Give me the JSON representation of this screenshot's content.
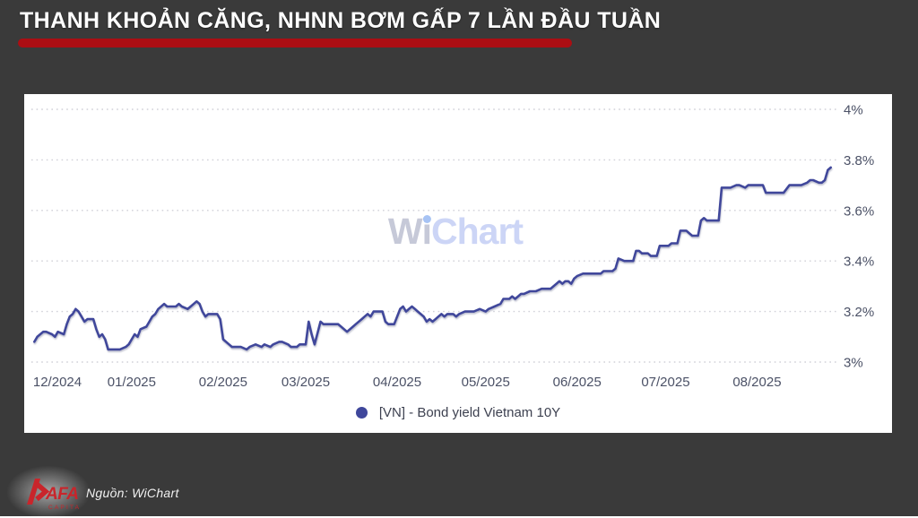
{
  "page": {
    "background": "#3a3a3a",
    "panel_background": "#ffffff"
  },
  "header": {
    "title": "THANH KHOẢN CĂNG, NHNN BƠM GẤP 7 LẦN ĐẦU TUẦN",
    "underline_color": "#ab0e13"
  },
  "watermark": {
    "part_w": "W",
    "part_i": "i",
    "part_rest": "Chart"
  },
  "footer": {
    "source_label": "Nguồn: WiChart",
    "logo_text": "AFA",
    "logo_subtext": "CAPITAL",
    "logo_color": "#c9252b"
  },
  "chart_data": {
    "type": "line",
    "title": "",
    "xlabel": "",
    "ylabel": "",
    "grid": "horizontal-dotted",
    "gridline_color": "#d0d0d8",
    "axis_label_color": "#4b5166",
    "legend_position": "bottom",
    "ylim": [
      3.0,
      4.0
    ],
    "x_domain": [
      "2024-11-28",
      "2025-08-27"
    ],
    "y_ticks": [
      {
        "label": "3%",
        "value": 3.0
      },
      {
        "label": "3.2%",
        "value": 3.2
      },
      {
        "label": "3.4%",
        "value": 3.4
      },
      {
        "label": "3.6%",
        "value": 3.6
      },
      {
        "label": "3.8%",
        "value": 3.8
      },
      {
        "label": "4%",
        "value": 4.0
      }
    ],
    "x_ticks": [
      {
        "label": "12/2024",
        "date": "2024-12-01"
      },
      {
        "label": "01/2025",
        "date": "2025-01-01"
      },
      {
        "label": "02/2025",
        "date": "2025-02-01"
      },
      {
        "label": "03/2025",
        "date": "2025-03-01"
      },
      {
        "label": "04/2025",
        "date": "2025-04-01"
      },
      {
        "label": "05/2025",
        "date": "2025-05-01"
      },
      {
        "label": "06/2025",
        "date": "2025-06-01"
      },
      {
        "label": "07/2025",
        "date": "2025-07-01"
      },
      {
        "label": "08/2025",
        "date": "2025-08-01"
      }
    ],
    "series": [
      {
        "name": "[VN] - Bond yield Vietnam 10Y",
        "color": "#3f479b",
        "dates": [
          "2024-11-29",
          "2024-11-30",
          "2024-12-02",
          "2024-12-03",
          "2024-12-05",
          "2024-12-06",
          "2024-12-07",
          "2024-12-09",
          "2024-12-10",
          "2024-12-11",
          "2024-12-12",
          "2024-12-13",
          "2024-12-14",
          "2024-12-15",
          "2024-12-16",
          "2024-12-17",
          "2024-12-19",
          "2024-12-20",
          "2024-12-21",
          "2024-12-22",
          "2024-12-23",
          "2024-12-24",
          "2024-12-26",
          "2024-12-27",
          "2024-12-28",
          "2024-12-30",
          "2024-12-31",
          "2025-01-01",
          "2025-01-02",
          "2025-01-03",
          "2025-01-04",
          "2025-01-06",
          "2025-01-07",
          "2025-01-08",
          "2025-01-09",
          "2025-01-10",
          "2025-01-12",
          "2025-01-13",
          "2025-01-14",
          "2025-01-16",
          "2025-01-17",
          "2025-01-18",
          "2025-01-20",
          "2025-01-21",
          "2025-01-23",
          "2025-01-24",
          "2025-01-25",
          "2025-01-26",
          "2025-01-27",
          "2025-01-29",
          "2025-01-30",
          "2025-01-31",
          "2025-02-01",
          "2025-02-03",
          "2025-02-04",
          "2025-02-06",
          "2025-02-07",
          "2025-02-09",
          "2025-02-10",
          "2025-02-12",
          "2025-02-14",
          "2025-02-15",
          "2025-02-17",
          "2025-02-18",
          "2025-02-20",
          "2025-02-21",
          "2025-02-23",
          "2025-02-24",
          "2025-02-26",
          "2025-02-27",
          "2025-03-01",
          "2025-03-02",
          "2025-03-03",
          "2025-03-04",
          "2025-03-06",
          "2025-03-07",
          "2025-03-09",
          "2025-03-10",
          "2025-03-12",
          "2025-03-13",
          "2025-03-15",
          "2025-03-17",
          "2025-03-18",
          "2025-03-20",
          "2025-03-21",
          "2025-03-22",
          "2025-03-23",
          "2025-03-24",
          "2025-03-26",
          "2025-03-27",
          "2025-03-28",
          "2025-03-29",
          "2025-03-30",
          "2025-03-31",
          "2025-04-02",
          "2025-04-03",
          "2025-04-04",
          "2025-04-05",
          "2025-04-06",
          "2025-04-07",
          "2025-04-08",
          "2025-04-09",
          "2025-04-10",
          "2025-04-11",
          "2025-04-12",
          "2025-04-13",
          "2025-04-14",
          "2025-04-15",
          "2025-04-16",
          "2025-04-17",
          "2025-04-18",
          "2025-04-20",
          "2025-04-21",
          "2025-04-22",
          "2025-04-24",
          "2025-04-26",
          "2025-04-27",
          "2025-04-29",
          "2025-05-01",
          "2025-05-02",
          "2025-05-04",
          "2025-05-06",
          "2025-05-07",
          "2025-05-09",
          "2025-05-10",
          "2025-05-11",
          "2025-05-12",
          "2025-05-13",
          "2025-05-14",
          "2025-05-16",
          "2025-05-17",
          "2025-05-18",
          "2025-05-20",
          "2025-05-21",
          "2025-05-22",
          "2025-05-23",
          "2025-05-25",
          "2025-05-26",
          "2025-05-27",
          "2025-05-28",
          "2025-05-29",
          "2025-05-30",
          "2025-05-31",
          "2025-06-01",
          "2025-06-03",
          "2025-06-04",
          "2025-06-06",
          "2025-06-07",
          "2025-06-09",
          "2025-06-10",
          "2025-06-11",
          "2025-06-13",
          "2025-06-14",
          "2025-06-15",
          "2025-06-17",
          "2025-06-18",
          "2025-06-20",
          "2025-06-21",
          "2025-06-22",
          "2025-06-23",
          "2025-06-25",
          "2025-06-26",
          "2025-06-28",
          "2025-06-29",
          "2025-06-30",
          "2025-07-02",
          "2025-07-03",
          "2025-07-05",
          "2025-07-06",
          "2025-07-08",
          "2025-07-09",
          "2025-07-10",
          "2025-07-12",
          "2025-07-13",
          "2025-07-14",
          "2025-07-15",
          "2025-07-17",
          "2025-07-19",
          "2025-07-20",
          "2025-07-22",
          "2025-07-23",
          "2025-07-25",
          "2025-07-26",
          "2025-07-28",
          "2025-07-29",
          "2025-07-31",
          "2025-08-01",
          "2025-08-03",
          "2025-08-04",
          "2025-08-06",
          "2025-08-07",
          "2025-08-09",
          "2025-08-10",
          "2025-08-12",
          "2025-08-13",
          "2025-08-15",
          "2025-08-16",
          "2025-08-18",
          "2025-08-19",
          "2025-08-20",
          "2025-08-22",
          "2025-08-23",
          "2025-08-24",
          "2025-08-25",
          "2025-08-26"
        ],
        "values": [
          3.08,
          3.1,
          3.12,
          3.12,
          3.11,
          3.1,
          3.12,
          3.11,
          3.15,
          3.18,
          3.19,
          3.21,
          3.2,
          3.18,
          3.16,
          3.17,
          3.17,
          3.13,
          3.1,
          3.11,
          3.09,
          3.05,
          3.05,
          3.05,
          3.05,
          3.06,
          3.07,
          3.09,
          3.11,
          3.1,
          3.13,
          3.14,
          3.16,
          3.18,
          3.19,
          3.21,
          3.23,
          3.22,
          3.22,
          3.22,
          3.23,
          3.22,
          3.21,
          3.22,
          3.24,
          3.23,
          3.2,
          3.18,
          3.19,
          3.19,
          3.19,
          3.17,
          3.09,
          3.07,
          3.06,
          3.06,
          3.06,
          3.05,
          3.06,
          3.07,
          3.06,
          3.07,
          3.06,
          3.07,
          3.08,
          3.08,
          3.07,
          3.06,
          3.06,
          3.07,
          3.07,
          3.16,
          3.11,
          3.07,
          3.16,
          3.15,
          3.15,
          3.15,
          3.15,
          3.14,
          3.12,
          3.14,
          3.15,
          3.17,
          3.18,
          3.19,
          3.18,
          3.2,
          3.2,
          3.2,
          3.16,
          3.15,
          3.15,
          3.15,
          3.21,
          3.22,
          3.2,
          3.21,
          3.22,
          3.21,
          3.2,
          3.19,
          3.18,
          3.16,
          3.17,
          3.16,
          3.17,
          3.18,
          3.19,
          3.18,
          3.19,
          3.19,
          3.18,
          3.19,
          3.2,
          3.2,
          3.2,
          3.21,
          3.2,
          3.21,
          3.22,
          3.23,
          3.25,
          3.25,
          3.26,
          3.25,
          3.26,
          3.27,
          3.27,
          3.28,
          3.28,
          3.28,
          3.29,
          3.29,
          3.29,
          3.29,
          3.31,
          3.32,
          3.31,
          3.32,
          3.32,
          3.31,
          3.33,
          3.34,
          3.35,
          3.35,
          3.35,
          3.35,
          3.35,
          3.36,
          3.36,
          3.36,
          3.37,
          3.41,
          3.4,
          3.4,
          3.4,
          3.44,
          3.44,
          3.43,
          3.43,
          3.42,
          3.42,
          3.46,
          3.46,
          3.46,
          3.47,
          3.47,
          3.52,
          3.52,
          3.51,
          3.5,
          3.5,
          3.56,
          3.57,
          3.56,
          3.56,
          3.56,
          3.69,
          3.69,
          3.69,
          3.7,
          3.7,
          3.69,
          3.7,
          3.7,
          3.7,
          3.7,
          3.67,
          3.67,
          3.67,
          3.67,
          3.67,
          3.7,
          3.7,
          3.7,
          3.7,
          3.71,
          3.72,
          3.72,
          3.71,
          3.71,
          3.72,
          3.76,
          3.77
        ]
      }
    ]
  }
}
